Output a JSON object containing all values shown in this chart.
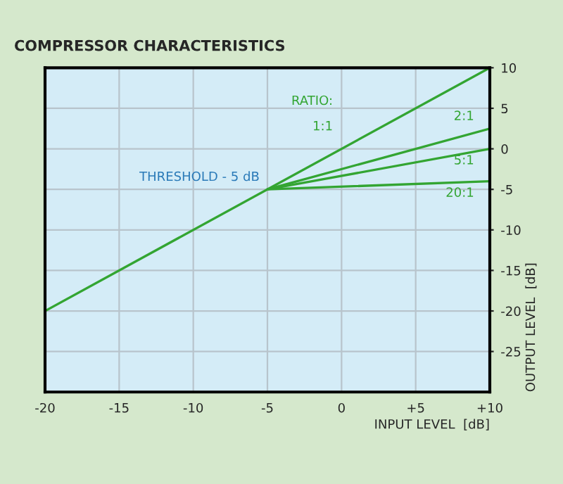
{
  "chart_data": {
    "type": "line",
    "title": "COMPRESSOR CHARACTERISTICS",
    "xlabel": "INPUT LEVEL  [dB]",
    "ylabel": "OUTPUT LEVEL  [dB]",
    "legend_title": "RATIO:",
    "series": [
      {
        "name": "1:1",
        "color": "#33a532",
        "x": [
          -20,
          10
        ],
        "values": [
          -20,
          10
        ]
      },
      {
        "name": "2:1",
        "color": "#33a532",
        "x": [
          -5,
          10
        ],
        "values": [
          -5,
          2.5
        ]
      },
      {
        "name": "5:1",
        "color": "#33a532",
        "x": [
          -5,
          10
        ],
        "values": [
          -5,
          0
        ]
      },
      {
        "name": "20:1",
        "color": "#33a532",
        "x": [
          -5,
          10
        ],
        "values": [
          -5,
          -4
        ]
      }
    ],
    "annotations": [
      {
        "text": "THRESHOLD - 5 dB",
        "x": -5,
        "y": -5
      }
    ],
    "xlim": [
      -20,
      10
    ],
    "ylim": [
      -30,
      10
    ],
    "xticks": [
      -20,
      -15,
      -10,
      -5,
      0,
      {
        "value": 5,
        "label": "+5"
      },
      {
        "value": 10,
        "label": "+10"
      }
    ],
    "yticks": [
      10,
      5,
      0,
      -5,
      -10,
      -15,
      -20,
      -25
    ],
    "grid": true,
    "legend": false,
    "marker": "none",
    "line_style": "solid"
  }
}
